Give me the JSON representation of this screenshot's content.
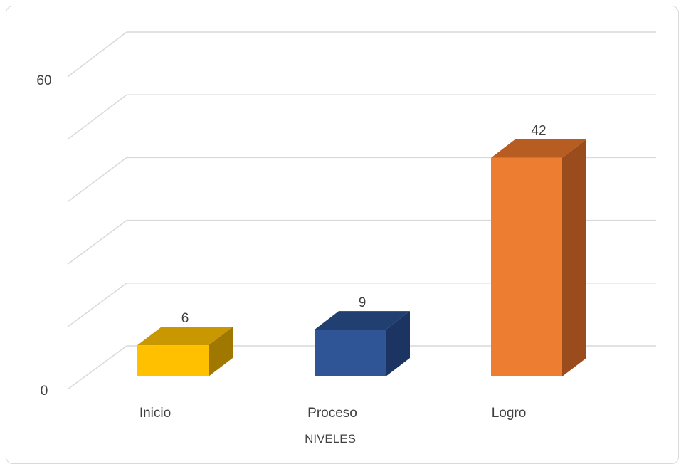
{
  "chart_data": {
    "type": "bar",
    "categories": [
      "Inicio",
      "Proceso",
      "Logro"
    ],
    "values": [
      6,
      9,
      42
    ],
    "data_labels": [
      "6",
      "9",
      "42"
    ],
    "xlabel": "NIVELES",
    "ylabel": "",
    "ylim": [
      0,
      60
    ],
    "y_tick_labels": [
      "0",
      "60"
    ],
    "gridlines": 6,
    "legend": "none",
    "style": "3d-column",
    "colors": {
      "Inicio": {
        "front": "#ffc000",
        "top": "#c99700",
        "side": "#a07800"
      },
      "Proceso": {
        "front": "#2f5597",
        "top": "#223f72",
        "side": "#1c3461"
      },
      "Logro": {
        "front": "#ed7d31",
        "top": "#b85d21",
        "side": "#9a4c1c"
      }
    },
    "grid_color": "#d9d9d9"
  }
}
